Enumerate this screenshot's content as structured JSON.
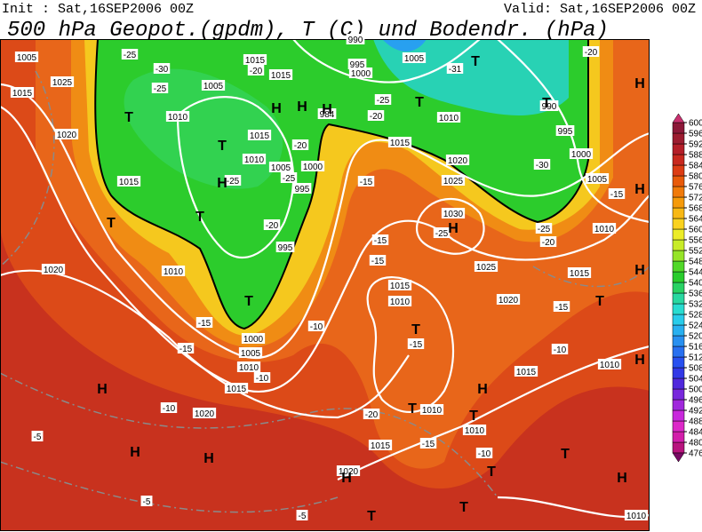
{
  "header": {
    "init": "Init : Sat,16SEP2006 00Z",
    "valid": "Valid: Sat,16SEP2006 00Z",
    "title": "500 hPa Geopot.(gpdm), T (C) und Bodendr. (hPa)"
  },
  "map": {
    "labels": [
      "1005",
      "1025",
      "1015",
      "1020",
      "1010",
      "1005",
      "1015",
      "1015",
      "1015",
      "1010",
      "1005",
      "1000",
      "995",
      "995",
      "1015",
      "1020",
      "1010",
      "1000",
      "1005",
      "1010",
      "1015",
      "1020",
      "990",
      "995",
      "1000",
      "1005",
      "1010",
      "1015",
      "1020",
      "1025",
      "1030",
      "1025",
      "1015",
      "1010",
      "1020",
      "1015",
      "1010",
      "1005",
      "1000",
      "995",
      "990",
      "1010",
      "1015",
      "1010",
      "1010",
      "1015",
      "1020",
      "1010",
      "984",
      "-25",
      "-30",
      "-25",
      "-20",
      "-20",
      "-25",
      "-25",
      "-20",
      "-15",
      "-15",
      "-10",
      "-10",
      "-10",
      "-15",
      "-15",
      "-15",
      "-15",
      "-15",
      "-10",
      "-20",
      "-25",
      "-20",
      "-31",
      "-30",
      "-25",
      "-20",
      "-15",
      "-15",
      "-10",
      "-5",
      "-5",
      "-5",
      "-20",
      "-25",
      "T",
      "T",
      "H",
      "T",
      "T",
      "T",
      "H",
      "H",
      "H",
      "T",
      "T",
      "T",
      "H",
      "T",
      "H",
      "H",
      "H",
      "T",
      "H",
      "H",
      "H",
      "T",
      "T",
      "H",
      "H",
      "H",
      "T",
      "T",
      "T",
      "T",
      "H"
    ],
    "colorbar": {
      "ticks": [
        476,
        480,
        484,
        488,
        492,
        496,
        500,
        504,
        508,
        512,
        516,
        520,
        524,
        528,
        532,
        536,
        540,
        544,
        548,
        552,
        556,
        560,
        564,
        568,
        572,
        576,
        580,
        584,
        588,
        592,
        596,
        600
      ],
      "colors": [
        "#b8147e",
        "#d21eaa",
        "#dc28c8",
        "#c828dc",
        "#a028dc",
        "#7828dc",
        "#5028dc",
        "#3238e6",
        "#2850f0",
        "#2870f0",
        "#2890f0",
        "#28b0f0",
        "#28ccea",
        "#28dcd0",
        "#28d8a0",
        "#28d264",
        "#28cc2c",
        "#50d828",
        "#96e428",
        "#c8ec28",
        "#ecec28",
        "#fad21e",
        "#f8b814",
        "#f59a0a",
        "#f07a0a",
        "#e85a0a",
        "#dc3c14",
        "#c8281e",
        "#b41e28",
        "#9c1c30",
        "#8c1838"
      ],
      "end_colors": [
        "#780a64",
        "#c8306e"
      ]
    }
  }
}
